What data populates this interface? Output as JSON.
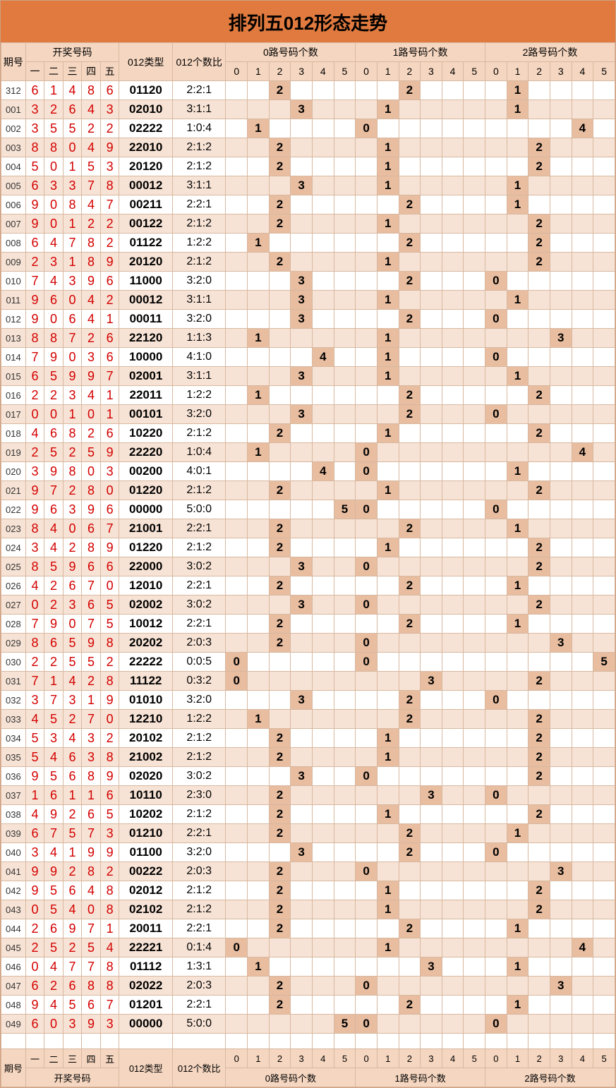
{
  "title": "排列五012形态走势",
  "colors": {
    "title_bg": "#e07a3f",
    "header_bg": "#f5d6c0",
    "stripe_a": "#ffffff",
    "stripe_b": "#f7e3d5",
    "highlight_bg": "#e8bda0",
    "draw_num_color": "#d40000",
    "border_color": "#d8b8a0"
  },
  "headers": {
    "period": "期号",
    "draw_group": "开奖号码",
    "draw_labels": [
      "一",
      "二",
      "三",
      "四",
      "五"
    ],
    "type": "012类型",
    "ratio": "012个数比",
    "count_groups": [
      "0路号码个数",
      "1路号码个数",
      "2路号码个数"
    ],
    "count_sub": [
      "0",
      "1",
      "2",
      "3",
      "4",
      "5"
    ]
  },
  "footers": {
    "period": "期号",
    "draw_labels": [
      "一",
      "二",
      "三",
      "四",
      "五"
    ],
    "draw_group": "开奖号码",
    "type": "012类型",
    "ratio": "012个数比",
    "count_groups": [
      "0路号码个数",
      "1路号码个数",
      "2路号码个数"
    ],
    "count_sub": [
      "0",
      "1",
      "2",
      "3",
      "4",
      "5"
    ]
  },
  "rows": [
    {
      "p": "312",
      "d": [
        6,
        1,
        4,
        8,
        6
      ],
      "t": "01120",
      "r": "2:2:1",
      "c0": {
        "i": 2,
        "v": 2
      },
      "c1": {
        "i": 2,
        "v": 2
      },
      "c2": {
        "i": 1,
        "v": 1
      }
    },
    {
      "p": "001",
      "d": [
        3,
        2,
        6,
        4,
        3
      ],
      "t": "02010",
      "r": "3:1:1",
      "c0": {
        "i": 3,
        "v": 3
      },
      "c1": {
        "i": 1,
        "v": 1
      },
      "c2": {
        "i": 1,
        "v": 1
      }
    },
    {
      "p": "002",
      "d": [
        3,
        5,
        5,
        2,
        2
      ],
      "t": "02222",
      "r": "1:0:4",
      "c0": {
        "i": 1,
        "v": 1
      },
      "c1": {
        "i": 0,
        "v": 0
      },
      "c2": {
        "i": 4,
        "v": 4
      }
    },
    {
      "p": "003",
      "d": [
        8,
        8,
        0,
        4,
        9
      ],
      "t": "22010",
      "r": "2:1:2",
      "c0": {
        "i": 2,
        "v": 2
      },
      "c1": {
        "i": 1,
        "v": 1
      },
      "c2": {
        "i": 2,
        "v": 2
      }
    },
    {
      "p": "004",
      "d": [
        5,
        0,
        1,
        5,
        3
      ],
      "t": "20120",
      "r": "2:1:2",
      "c0": {
        "i": 2,
        "v": 2
      },
      "c1": {
        "i": 1,
        "v": 1
      },
      "c2": {
        "i": 2,
        "v": 2
      }
    },
    {
      "p": "005",
      "d": [
        6,
        3,
        3,
        7,
        8
      ],
      "t": "00012",
      "r": "3:1:1",
      "c0": {
        "i": 3,
        "v": 3
      },
      "c1": {
        "i": 1,
        "v": 1
      },
      "c2": {
        "i": 1,
        "v": 1
      }
    },
    {
      "p": "006",
      "d": [
        9,
        0,
        8,
        4,
        7
      ],
      "t": "00211",
      "r": "2:2:1",
      "c0": {
        "i": 2,
        "v": 2
      },
      "c1": {
        "i": 2,
        "v": 2
      },
      "c2": {
        "i": 1,
        "v": 1
      }
    },
    {
      "p": "007",
      "d": [
        9,
        0,
        1,
        2,
        2
      ],
      "t": "00122",
      "r": "2:1:2",
      "c0": {
        "i": 2,
        "v": 2
      },
      "c1": {
        "i": 1,
        "v": 1
      },
      "c2": {
        "i": 2,
        "v": 2
      }
    },
    {
      "p": "008",
      "d": [
        6,
        4,
        7,
        8,
        2
      ],
      "t": "01122",
      "r": "1:2:2",
      "c0": {
        "i": 1,
        "v": 1
      },
      "c1": {
        "i": 2,
        "v": 2
      },
      "c2": {
        "i": 2,
        "v": 2
      }
    },
    {
      "p": "009",
      "d": [
        2,
        3,
        1,
        8,
        9
      ],
      "t": "20120",
      "r": "2:1:2",
      "c0": {
        "i": 2,
        "v": 2
      },
      "c1": {
        "i": 1,
        "v": 1
      },
      "c2": {
        "i": 2,
        "v": 2
      }
    },
    {
      "p": "010",
      "d": [
        7,
        4,
        3,
        9,
        6
      ],
      "t": "11000",
      "r": "3:2:0",
      "c0": {
        "i": 3,
        "v": 3
      },
      "c1": {
        "i": 2,
        "v": 2
      },
      "c2": {
        "i": 0,
        "v": 0
      }
    },
    {
      "p": "011",
      "d": [
        9,
        6,
        0,
        4,
        2
      ],
      "t": "00012",
      "r": "3:1:1",
      "c0": {
        "i": 3,
        "v": 3
      },
      "c1": {
        "i": 1,
        "v": 1
      },
      "c2": {
        "i": 1,
        "v": 1
      }
    },
    {
      "p": "012",
      "d": [
        9,
        0,
        6,
        4,
        1
      ],
      "t": "00011",
      "r": "3:2:0",
      "c0": {
        "i": 3,
        "v": 3
      },
      "c1": {
        "i": 2,
        "v": 2
      },
      "c2": {
        "i": 0,
        "v": 0
      }
    },
    {
      "p": "013",
      "d": [
        8,
        8,
        7,
        2,
        6
      ],
      "t": "22120",
      "r": "1:1:3",
      "c0": {
        "i": 1,
        "v": 1
      },
      "c1": {
        "i": 1,
        "v": 1
      },
      "c2": {
        "i": 3,
        "v": 3
      }
    },
    {
      "p": "014",
      "d": [
        7,
        9,
        0,
        3,
        6
      ],
      "t": "10000",
      "r": "4:1:0",
      "c0": {
        "i": 4,
        "v": 4
      },
      "c1": {
        "i": 1,
        "v": 1
      },
      "c2": {
        "i": 0,
        "v": 0
      }
    },
    {
      "p": "015",
      "d": [
        6,
        5,
        9,
        9,
        7
      ],
      "t": "02001",
      "r": "3:1:1",
      "c0": {
        "i": 3,
        "v": 3
      },
      "c1": {
        "i": 1,
        "v": 1
      },
      "c2": {
        "i": 1,
        "v": 1
      }
    },
    {
      "p": "016",
      "d": [
        2,
        2,
        3,
        4,
        1
      ],
      "t": "22011",
      "r": "1:2:2",
      "c0": {
        "i": 1,
        "v": 1
      },
      "c1": {
        "i": 2,
        "v": 2
      },
      "c2": {
        "i": 2,
        "v": 2
      }
    },
    {
      "p": "017",
      "d": [
        0,
        0,
        1,
        0,
        1
      ],
      "t": "00101",
      "r": "3:2:0",
      "c0": {
        "i": 3,
        "v": 3
      },
      "c1": {
        "i": 2,
        "v": 2
      },
      "c2": {
        "i": 0,
        "v": 0
      }
    },
    {
      "p": "018",
      "d": [
        4,
        6,
        8,
        2,
        6
      ],
      "t": "10220",
      "r": "2:1:2",
      "c0": {
        "i": 2,
        "v": 2
      },
      "c1": {
        "i": 1,
        "v": 1
      },
      "c2": {
        "i": 2,
        "v": 2
      }
    },
    {
      "p": "019",
      "d": [
        2,
        5,
        2,
        5,
        9
      ],
      "t": "22220",
      "r": "1:0:4",
      "c0": {
        "i": 1,
        "v": 1
      },
      "c1": {
        "i": 0,
        "v": 0
      },
      "c2": {
        "i": 4,
        "v": 4
      }
    },
    {
      "p": "020",
      "d": [
        3,
        9,
        8,
        0,
        3
      ],
      "t": "00200",
      "r": "4:0:1",
      "c0": {
        "i": 4,
        "v": 4
      },
      "c1": {
        "i": 0,
        "v": 0
      },
      "c2": {
        "i": 1,
        "v": 1
      }
    },
    {
      "p": "021",
      "d": [
        9,
        7,
        2,
        8,
        0
      ],
      "t": "01220",
      "r": "2:1:2",
      "c0": {
        "i": 2,
        "v": 2
      },
      "c1": {
        "i": 1,
        "v": 1
      },
      "c2": {
        "i": 2,
        "v": 2
      }
    },
    {
      "p": "022",
      "d": [
        9,
        6,
        3,
        9,
        6
      ],
      "t": "00000",
      "r": "5:0:0",
      "c0": {
        "i": 5,
        "v": 5
      },
      "c1": {
        "i": 0,
        "v": 0
      },
      "c2": {
        "i": 0,
        "v": 0
      }
    },
    {
      "p": "023",
      "d": [
        8,
        4,
        0,
        6,
        7
      ],
      "t": "21001",
      "r": "2:2:1",
      "c0": {
        "i": 2,
        "v": 2
      },
      "c1": {
        "i": 2,
        "v": 2
      },
      "c2": {
        "i": 1,
        "v": 1
      }
    },
    {
      "p": "024",
      "d": [
        3,
        4,
        2,
        8,
        9
      ],
      "t": "01220",
      "r": "2:1:2",
      "c0": {
        "i": 2,
        "v": 2
      },
      "c1": {
        "i": 1,
        "v": 1
      },
      "c2": {
        "i": 2,
        "v": 2
      }
    },
    {
      "p": "025",
      "d": [
        8,
        5,
        9,
        6,
        6
      ],
      "t": "22000",
      "r": "3:0:2",
      "c0": {
        "i": 3,
        "v": 3
      },
      "c1": {
        "i": 0,
        "v": 0
      },
      "c2": {
        "i": 2,
        "v": 2
      }
    },
    {
      "p": "026",
      "d": [
        4,
        2,
        6,
        7,
        0
      ],
      "t": "12010",
      "r": "2:2:1",
      "c0": {
        "i": 2,
        "v": 2
      },
      "c1": {
        "i": 2,
        "v": 2
      },
      "c2": {
        "i": 1,
        "v": 1
      }
    },
    {
      "p": "027",
      "d": [
        0,
        2,
        3,
        6,
        5
      ],
      "t": "02002",
      "r": "3:0:2",
      "c0": {
        "i": 3,
        "v": 3
      },
      "c1": {
        "i": 0,
        "v": 0
      },
      "c2": {
        "i": 2,
        "v": 2
      }
    },
    {
      "p": "028",
      "d": [
        7,
        9,
        0,
        7,
        5
      ],
      "t": "10012",
      "r": "2:2:1",
      "c0": {
        "i": 2,
        "v": 2
      },
      "c1": {
        "i": 2,
        "v": 2
      },
      "c2": {
        "i": 1,
        "v": 1
      }
    },
    {
      "p": "029",
      "d": [
        8,
        6,
        5,
        9,
        8
      ],
      "t": "20202",
      "r": "2:0:3",
      "c0": {
        "i": 2,
        "v": 2
      },
      "c1": {
        "i": 0,
        "v": 0
      },
      "c2": {
        "i": 3,
        "v": 3
      }
    },
    {
      "p": "030",
      "d": [
        2,
        2,
        5,
        5,
        2
      ],
      "t": "22222",
      "r": "0:0:5",
      "c0": {
        "i": 0,
        "v": 0
      },
      "c1": {
        "i": 0,
        "v": 0
      },
      "c2": {
        "i": 5,
        "v": 5
      }
    },
    {
      "p": "031",
      "d": [
        7,
        1,
        4,
        2,
        8
      ],
      "t": "11122",
      "r": "0:3:2",
      "c0": {
        "i": 0,
        "v": 0
      },
      "c1": {
        "i": 3,
        "v": 3
      },
      "c2": {
        "i": 2,
        "v": 2
      }
    },
    {
      "p": "032",
      "d": [
        3,
        7,
        3,
        1,
        9
      ],
      "t": "01010",
      "r": "3:2:0",
      "c0": {
        "i": 3,
        "v": 3
      },
      "c1": {
        "i": 2,
        "v": 2
      },
      "c2": {
        "i": 0,
        "v": 0
      }
    },
    {
      "p": "033",
      "d": [
        4,
        5,
        2,
        7,
        0
      ],
      "t": "12210",
      "r": "1:2:2",
      "c0": {
        "i": 1,
        "v": 1
      },
      "c1": {
        "i": 2,
        "v": 2
      },
      "c2": {
        "i": 2,
        "v": 2
      }
    },
    {
      "p": "034",
      "d": [
        5,
        3,
        4,
        3,
        2
      ],
      "t": "20102",
      "r": "2:1:2",
      "c0": {
        "i": 2,
        "v": 2
      },
      "c1": {
        "i": 1,
        "v": 1
      },
      "c2": {
        "i": 2,
        "v": 2
      }
    },
    {
      "p": "035",
      "d": [
        5,
        4,
        6,
        3,
        8
      ],
      "t": "21002",
      "r": "2:1:2",
      "c0": {
        "i": 2,
        "v": 2
      },
      "c1": {
        "i": 1,
        "v": 1
      },
      "c2": {
        "i": 2,
        "v": 2
      }
    },
    {
      "p": "036",
      "d": [
        9,
        5,
        6,
        8,
        9
      ],
      "t": "02020",
      "r": "3:0:2",
      "c0": {
        "i": 3,
        "v": 3
      },
      "c1": {
        "i": 0,
        "v": 0
      },
      "c2": {
        "i": 2,
        "v": 2
      }
    },
    {
      "p": "037",
      "d": [
        1,
        6,
        1,
        1,
        6
      ],
      "t": "10110",
      "r": "2:3:0",
      "c0": {
        "i": 2,
        "v": 2
      },
      "c1": {
        "i": 3,
        "v": 3
      },
      "c2": {
        "i": 0,
        "v": 0
      }
    },
    {
      "p": "038",
      "d": [
        4,
        9,
        2,
        6,
        5
      ],
      "t": "10202",
      "r": "2:1:2",
      "c0": {
        "i": 2,
        "v": 2
      },
      "c1": {
        "i": 1,
        "v": 1
      },
      "c2": {
        "i": 2,
        "v": 2
      }
    },
    {
      "p": "039",
      "d": [
        6,
        7,
        5,
        7,
        3
      ],
      "t": "01210",
      "r": "2:2:1",
      "c0": {
        "i": 2,
        "v": 2
      },
      "c1": {
        "i": 2,
        "v": 2
      },
      "c2": {
        "i": 1,
        "v": 1
      }
    },
    {
      "p": "040",
      "d": [
        3,
        4,
        1,
        9,
        9
      ],
      "t": "01100",
      "r": "3:2:0",
      "c0": {
        "i": 3,
        "v": 3
      },
      "c1": {
        "i": 2,
        "v": 2
      },
      "c2": {
        "i": 0,
        "v": 0
      }
    },
    {
      "p": "041",
      "d": [
        9,
        9,
        2,
        8,
        2
      ],
      "t": "00222",
      "r": "2:0:3",
      "c0": {
        "i": 2,
        "v": 2
      },
      "c1": {
        "i": 0,
        "v": 0
      },
      "c2": {
        "i": 3,
        "v": 3
      }
    },
    {
      "p": "042",
      "d": [
        9,
        5,
        6,
        4,
        8
      ],
      "t": "02012",
      "r": "2:1:2",
      "c0": {
        "i": 2,
        "v": 2
      },
      "c1": {
        "i": 1,
        "v": 1
      },
      "c2": {
        "i": 2,
        "v": 2
      }
    },
    {
      "p": "043",
      "d": [
        0,
        5,
        4,
        0,
        8
      ],
      "t": "02102",
      "r": "2:1:2",
      "c0": {
        "i": 2,
        "v": 2
      },
      "c1": {
        "i": 1,
        "v": 1
      },
      "c2": {
        "i": 2,
        "v": 2
      }
    },
    {
      "p": "044",
      "d": [
        2,
        6,
        9,
        7,
        1
      ],
      "t": "20011",
      "r": "2:2:1",
      "c0": {
        "i": 2,
        "v": 2
      },
      "c1": {
        "i": 2,
        "v": 2
      },
      "c2": {
        "i": 1,
        "v": 1
      }
    },
    {
      "p": "045",
      "d": [
        2,
        5,
        2,
        5,
        4
      ],
      "t": "22221",
      "r": "0:1:4",
      "c0": {
        "i": 0,
        "v": 0
      },
      "c1": {
        "i": 1,
        "v": 1
      },
      "c2": {
        "i": 4,
        "v": 4
      }
    },
    {
      "p": "046",
      "d": [
        0,
        4,
        7,
        7,
        8
      ],
      "t": "01112",
      "r": "1:3:1",
      "c0": {
        "i": 1,
        "v": 1
      },
      "c1": {
        "i": 3,
        "v": 3
      },
      "c2": {
        "i": 1,
        "v": 1
      }
    },
    {
      "p": "047",
      "d": [
        6,
        2,
        6,
        8,
        8
      ],
      "t": "02022",
      "r": "2:0:3",
      "c0": {
        "i": 2,
        "v": 2
      },
      "c1": {
        "i": 0,
        "v": 0
      },
      "c2": {
        "i": 3,
        "v": 3
      }
    },
    {
      "p": "048",
      "d": [
        9,
        4,
        5,
        6,
        7
      ],
      "t": "01201",
      "r": "2:2:1",
      "c0": {
        "i": 2,
        "v": 2
      },
      "c1": {
        "i": 2,
        "v": 2
      },
      "c2": {
        "i": 1,
        "v": 1
      }
    },
    {
      "p": "049",
      "d": [
        6,
        0,
        3,
        9,
        3
      ],
      "t": "00000",
      "r": "5:0:0",
      "c0": {
        "i": 5,
        "v": 5
      },
      "c1": {
        "i": 0,
        "v": 0
      },
      "c2": {
        "i": 0,
        "v": 0
      }
    }
  ]
}
